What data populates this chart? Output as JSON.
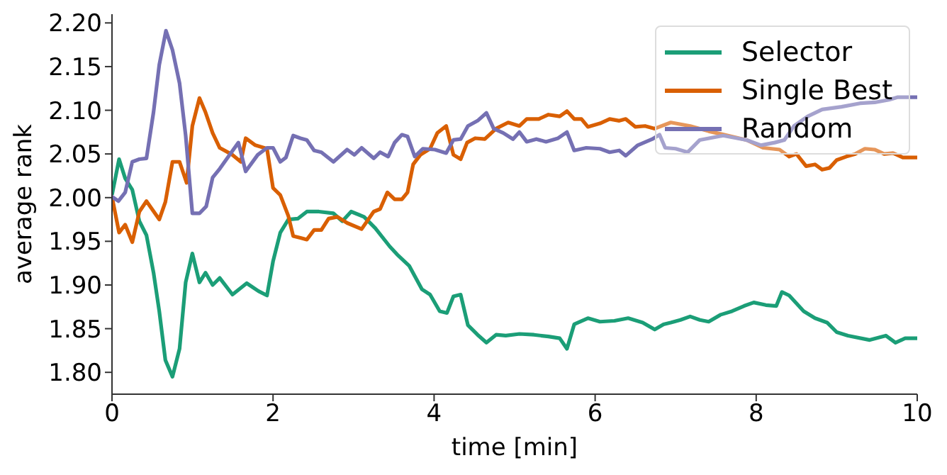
{
  "chart_data": {
    "type": "line",
    "xlabel": "time [min]",
    "ylabel": "average rank",
    "xlim": [
      0,
      10
    ],
    "xticks": [
      0,
      2,
      4,
      6,
      8,
      10
    ],
    "ylim": [
      1.775,
      2.21
    ],
    "yticks": [
      {
        "value": 1.8,
        "label": "1.80"
      },
      {
        "value": 1.85,
        "label": "1.85"
      },
      {
        "value": 1.9,
        "label": "1.90"
      },
      {
        "value": 1.95,
        "label": "1.95"
      },
      {
        "value": 2.0,
        "label": "2.00"
      },
      {
        "value": 2.05,
        "label": "2.05"
      },
      {
        "value": 2.1,
        "label": "2.10"
      },
      {
        "value": 2.15,
        "label": "2.15"
      },
      {
        "value": 2.2,
        "label": "2.20"
      }
    ],
    "grid": false,
    "legend": "top right",
    "marker": "none",
    "line_style": "solid",
    "series": [
      {
        "name": "Selector",
        "color": "#1b9e77",
        "x": [
          0,
          0.088,
          0.164,
          0.252,
          0.34,
          0.428,
          0.516,
          0.587,
          0.663,
          0.751,
          0.839,
          0.915,
          0.998,
          1.086,
          1.162,
          1.25,
          1.338,
          1.496,
          1.673,
          1.819,
          1.925,
          2.0,
          2.09,
          2.19,
          2.31,
          2.42,
          2.57,
          2.75,
          2.86,
          2.97,
          3.13,
          3.27,
          3.45,
          3.54,
          3.69,
          3.85,
          3.95,
          4.07,
          4.16,
          4.24,
          4.33,
          4.42,
          4.54,
          4.65,
          4.77,
          4.89,
          5.06,
          5.24,
          5.42,
          5.56,
          5.65,
          5.74,
          5.91,
          6.06,
          6.24,
          6.41,
          6.59,
          6.74,
          6.85,
          6.94,
          7.06,
          7.18,
          7.3,
          7.41,
          7.56,
          7.7,
          7.85,
          7.97,
          8.12,
          8.25,
          8.32,
          8.41,
          8.59,
          8.73,
          8.88,
          9.0,
          9.14,
          9.41,
          9.61,
          9.73,
          9.85,
          10
        ],
        "values": [
          2.003,
          2.044,
          2.022,
          2.009,
          1.973,
          1.957,
          1.914,
          1.87,
          1.814,
          1.795,
          1.827,
          1.903,
          1.936,
          1.903,
          1.914,
          1.9,
          1.908,
          1.889,
          1.902,
          1.893,
          1.888,
          1.927,
          1.96,
          1.975,
          1.976,
          1.984,
          1.984,
          1.982,
          1.973,
          1.984,
          1.978,
          1.965,
          1.944,
          1.935,
          1.922,
          1.895,
          1.889,
          1.87,
          1.868,
          1.887,
          1.889,
          1.854,
          1.843,
          1.834,
          1.843,
          1.842,
          1.844,
          1.843,
          1.841,
          1.839,
          1.827,
          1.855,
          1.862,
          1.858,
          1.859,
          1.862,
          1.857,
          1.849,
          1.855,
          1.857,
          1.86,
          1.864,
          1.86,
          1.858,
          1.866,
          1.87,
          1.876,
          1.88,
          1.877,
          1.876,
          1.892,
          1.888,
          1.87,
          1.862,
          1.857,
          1.846,
          1.842,
          1.837,
          1.842,
          1.834,
          1.839,
          1.839
        ]
      },
      {
        "name": "Single Best",
        "color": "#d95f02",
        "x": [
          0,
          0.088,
          0.164,
          0.252,
          0.34,
          0.428,
          0.587,
          0.663,
          0.751,
          0.839,
          0.927,
          0.998,
          1.086,
          1.16,
          1.25,
          1.338,
          1.496,
          1.6,
          1.66,
          1.78,
          1.925,
          2.0,
          2.09,
          2.19,
          2.25,
          2.34,
          2.42,
          2.51,
          2.6,
          2.69,
          2.8,
          2.92,
          3.1,
          3.25,
          3.33,
          3.42,
          3.51,
          3.6,
          3.67,
          3.74,
          3.83,
          3.95,
          4.04,
          4.15,
          4.24,
          4.33,
          4.41,
          4.51,
          4.63,
          4.77,
          4.92,
          5.06,
          5.15,
          5.3,
          5.42,
          5.56,
          5.65,
          5.74,
          5.83,
          5.91,
          6.06,
          6.18,
          6.3,
          6.38,
          6.5,
          6.62,
          6.74,
          6.94,
          7.18,
          7.41,
          7.65,
          7.88,
          8.09,
          8.29,
          8.41,
          8.5,
          8.62,
          8.73,
          8.82,
          8.91,
          9.0,
          9.12,
          9.23,
          9.35,
          9.47,
          9.59,
          9.7,
          9.82,
          10
        ],
        "values": [
          2.001,
          1.96,
          1.969,
          1.949,
          1.984,
          1.996,
          1.975,
          1.995,
          2.041,
          2.041,
          2.017,
          2.082,
          2.114,
          2.098,
          2.074,
          2.057,
          2.049,
          2.041,
          2.068,
          2.06,
          2.056,
          2.011,
          2.003,
          1.979,
          1.956,
          1.954,
          1.952,
          1.963,
          1.963,
          1.976,
          1.978,
          1.971,
          1.964,
          1.984,
          1.987,
          2.006,
          1.998,
          1.998,
          2.006,
          2.038,
          2.049,
          2.056,
          2.074,
          2.082,
          2.049,
          2.044,
          2.063,
          2.068,
          2.067,
          2.079,
          2.086,
          2.082,
          2.09,
          2.09,
          2.095,
          2.093,
          2.099,
          2.09,
          2.09,
          2.081,
          2.085,
          2.09,
          2.088,
          2.09,
          2.081,
          2.082,
          2.079,
          2.086,
          2.082,
          2.076,
          2.071,
          2.066,
          2.057,
          2.055,
          2.047,
          2.05,
          2.036,
          2.038,
          2.032,
          2.034,
          2.043,
          2.047,
          2.05,
          2.056,
          2.055,
          2.05,
          2.051,
          2.046,
          2.046
        ]
      },
      {
        "name": "Random",
        "color": "#7570b3",
        "x": [
          0,
          0.08,
          0.164,
          0.252,
          0.34,
          0.428,
          0.516,
          0.587,
          0.67,
          0.751,
          0.839,
          0.915,
          0.998,
          1.086,
          1.17,
          1.25,
          1.338,
          1.46,
          1.57,
          1.66,
          1.81,
          1.925,
          2.0,
          2.09,
          2.16,
          2.25,
          2.34,
          2.42,
          2.51,
          2.6,
          2.75,
          2.92,
          3.01,
          3.1,
          3.25,
          3.33,
          3.43,
          3.51,
          3.6,
          3.67,
          3.76,
          3.86,
          4.01,
          4.15,
          4.24,
          4.33,
          4.42,
          4.54,
          4.65,
          4.74,
          4.86,
          4.98,
          5.06,
          5.15,
          5.27,
          5.39,
          5.54,
          5.65,
          5.74,
          5.89,
          6.06,
          6.18,
          6.3,
          6.38,
          6.53,
          6.71,
          6.8,
          6.87,
          7.0,
          7.15,
          7.3,
          7.59,
          7.88,
          8.06,
          8.23,
          8.35,
          8.47,
          8.64,
          8.82,
          9.06,
          9.29,
          9.47,
          9.65,
          9.76,
          10
        ],
        "values": [
          2.001,
          1.996,
          2.006,
          2.041,
          2.044,
          2.045,
          2.098,
          2.152,
          2.191,
          2.169,
          2.131,
          2.071,
          1.982,
          1.982,
          1.99,
          2.023,
          2.033,
          2.049,
          2.063,
          2.03,
          2.049,
          2.057,
          2.057,
          2.041,
          2.046,
          2.071,
          2.068,
          2.066,
          2.054,
          2.052,
          2.041,
          2.055,
          2.049,
          2.057,
          2.045,
          2.052,
          2.047,
          2.063,
          2.072,
          2.07,
          2.047,
          2.056,
          2.055,
          2.051,
          2.066,
          2.067,
          2.082,
          2.088,
          2.097,
          2.079,
          2.074,
          2.067,
          2.075,
          2.064,
          2.067,
          2.064,
          2.068,
          2.075,
          2.054,
          2.057,
          2.056,
          2.052,
          2.054,
          2.048,
          2.06,
          2.067,
          2.072,
          2.057,
          2.056,
          2.052,
          2.066,
          2.071,
          2.066,
          2.06,
          2.063,
          2.066,
          2.082,
          2.093,
          2.101,
          2.104,
          2.108,
          2.109,
          2.112,
          2.115,
          2.115
        ]
      }
    ]
  }
}
